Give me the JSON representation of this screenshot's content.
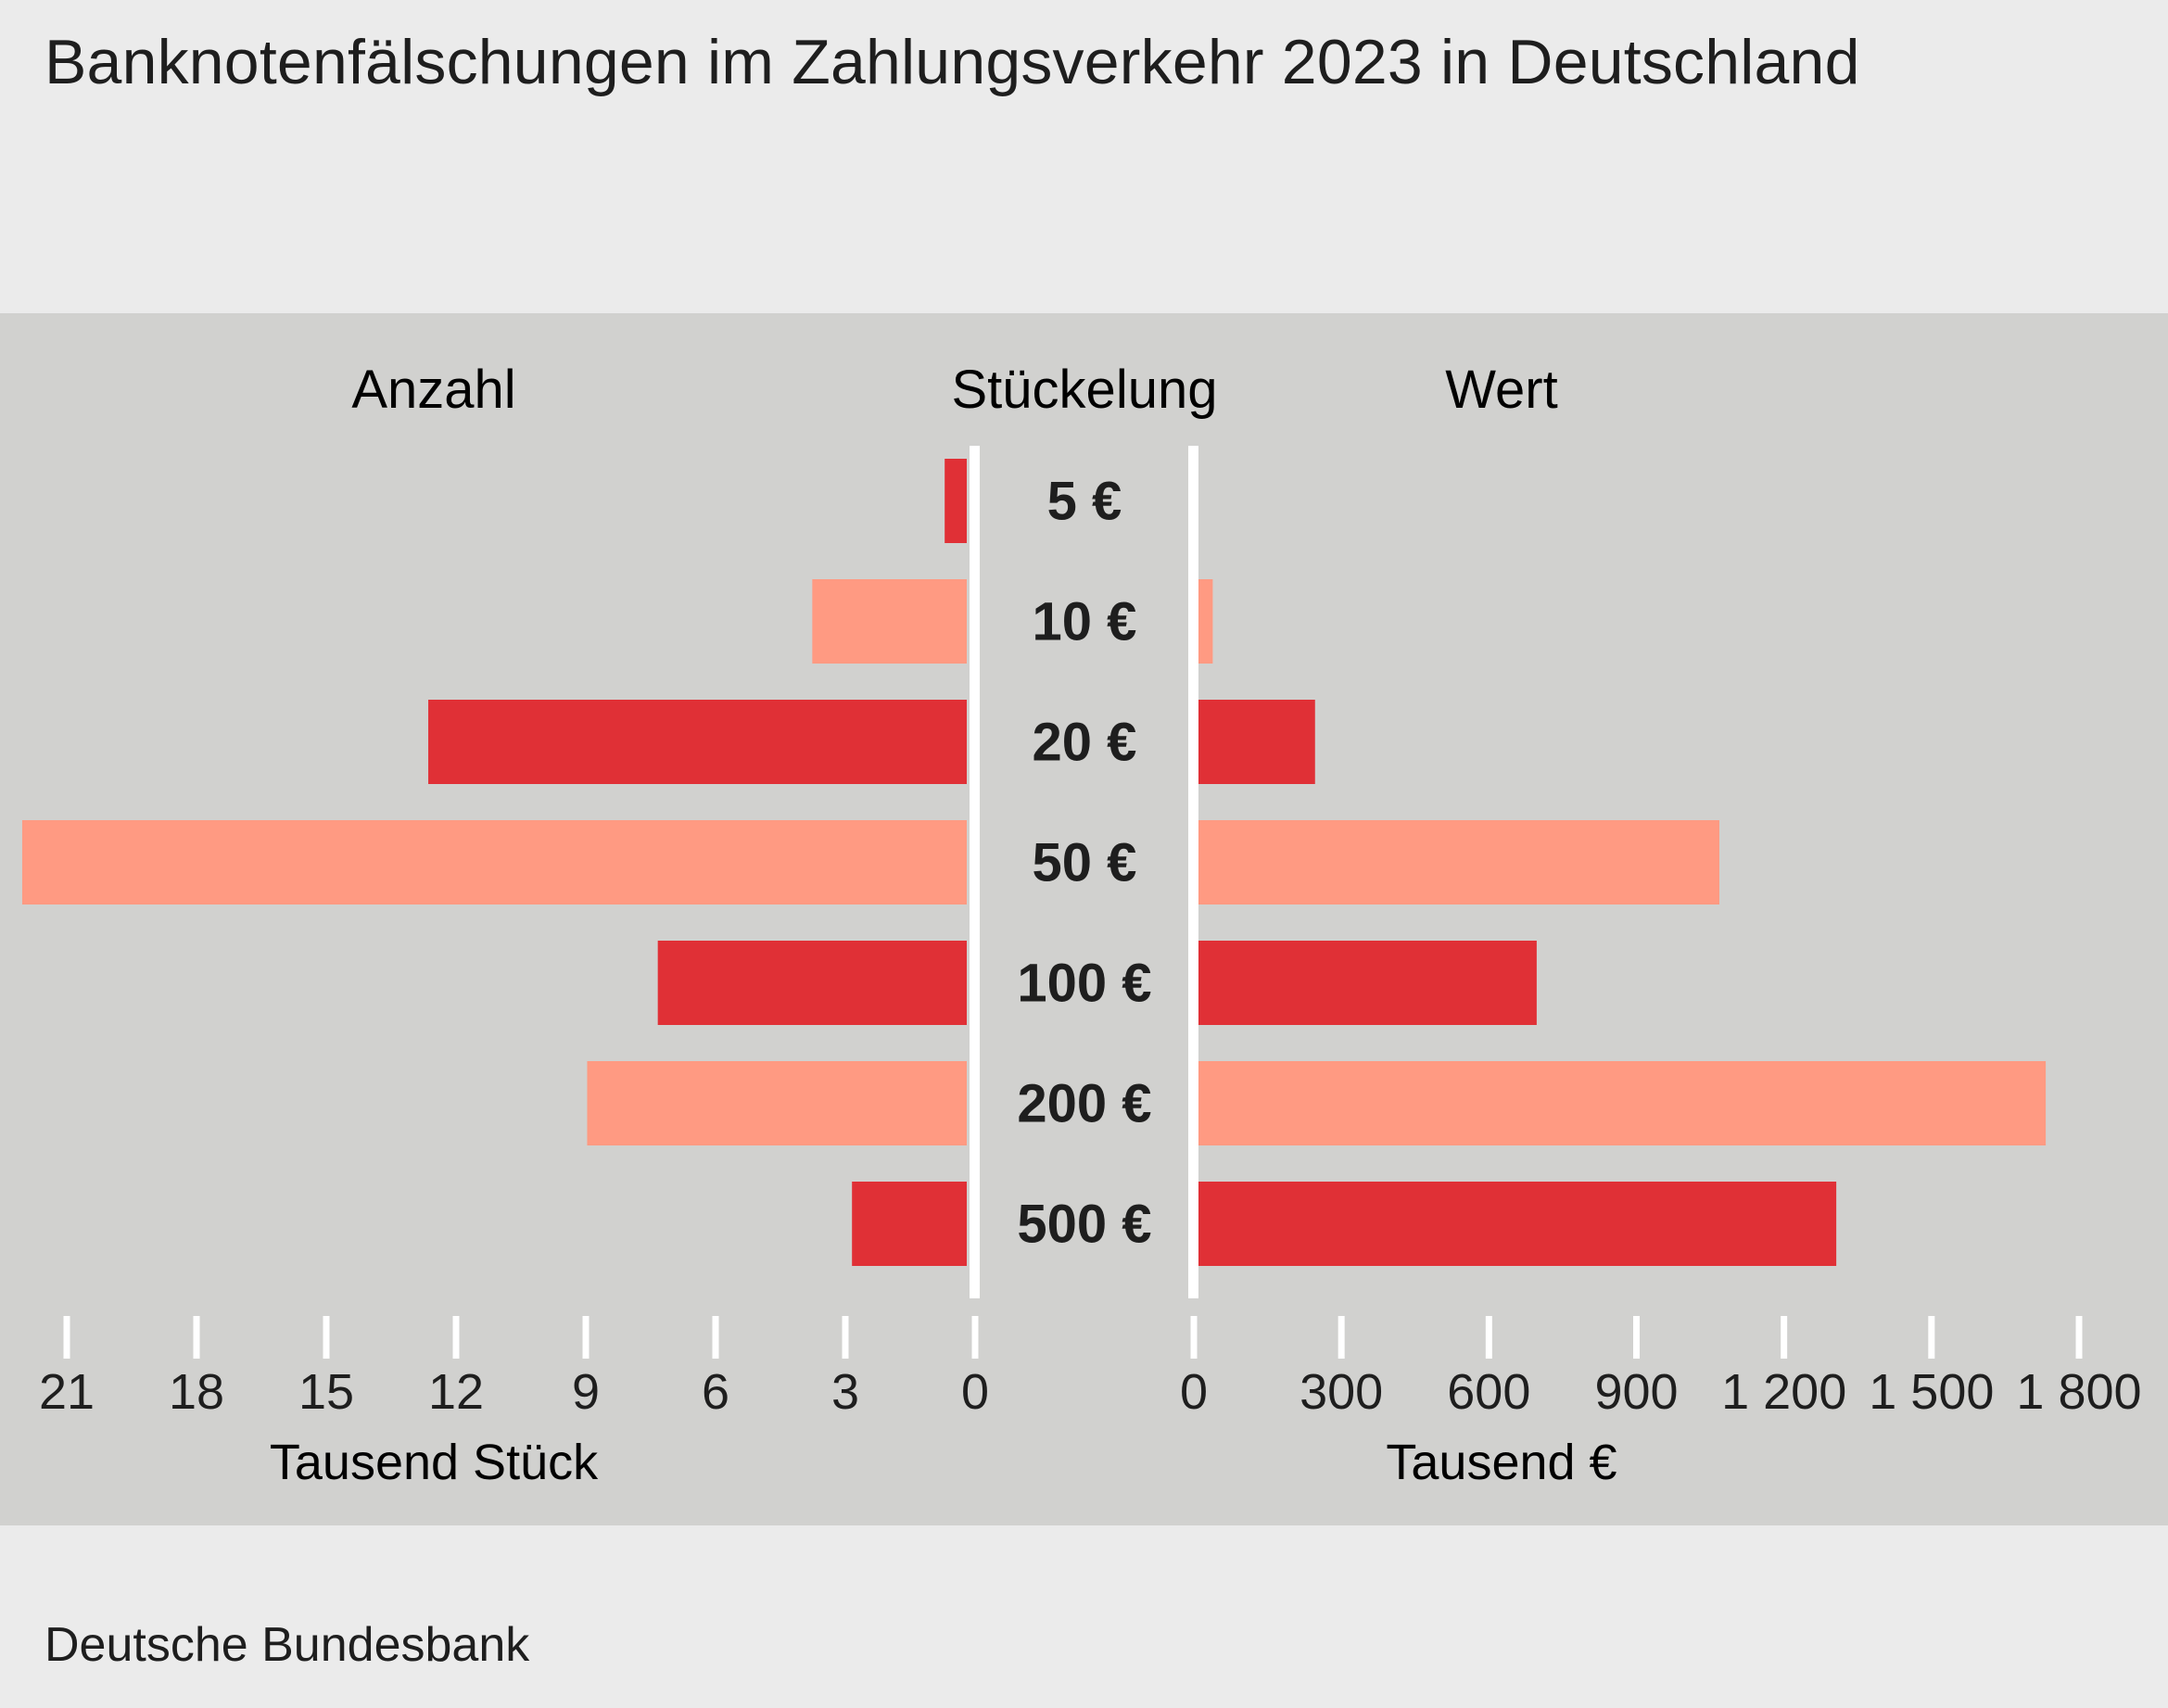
{
  "title": "Banknotenfälschungen im Zahlungsverkehr 2023 in Deutschland",
  "source": "Deutsche Bundesbank",
  "colors": {
    "page_background": "#ebebeb",
    "panel_background": "#d1d1cf",
    "dark_red": "#e03036",
    "light_salmon": "#ff9a82",
    "axis_white": "#ffffff",
    "text": "#1e1e1e"
  },
  "chart_data": {
    "type": "bar",
    "layout": "butterfly (two horizontal bar panels sharing a center label column)",
    "column_headers": {
      "left": "Anzahl",
      "center": "Stückelung",
      "right": "Wert"
    },
    "categories": [
      "5 €",
      "10 €",
      "20 €",
      "50 €",
      "100 €",
      "200 €",
      "500 €"
    ],
    "bar_colors": [
      "dark_red",
      "light_salmon",
      "dark_red",
      "light_salmon",
      "dark_red",
      "light_salmon",
      "dark_red"
    ],
    "left_panel": {
      "series_name": "Anzahl",
      "unit_label": "Tausend Stück",
      "direction": "right-to-left",
      "xlim": [
        0,
        21
      ],
      "ticks": [
        21,
        18,
        15,
        12,
        9,
        6,
        3,
        0
      ],
      "tick_labels": [
        "21",
        "18",
        "15",
        "12",
        "9",
        "6",
        "3",
        "0"
      ],
      "values": [
        0.5,
        3.5,
        12.2,
        21.4,
        7.0,
        8.6,
        2.6
      ]
    },
    "right_panel": {
      "series_name": "Wert",
      "unit_label": "Tausend €",
      "direction": "left-to-right",
      "xlim": [
        0,
        1800
      ],
      "ticks": [
        0,
        300,
        600,
        900,
        1200,
        1500,
        1800
      ],
      "tick_labels": [
        "0",
        "300",
        "600",
        "900",
        "1 200",
        "1 500",
        "1 800"
      ],
      "values": [
        3,
        35,
        245,
        1075,
        700,
        1745,
        1315
      ]
    },
    "grid": false,
    "legend": "none"
  }
}
